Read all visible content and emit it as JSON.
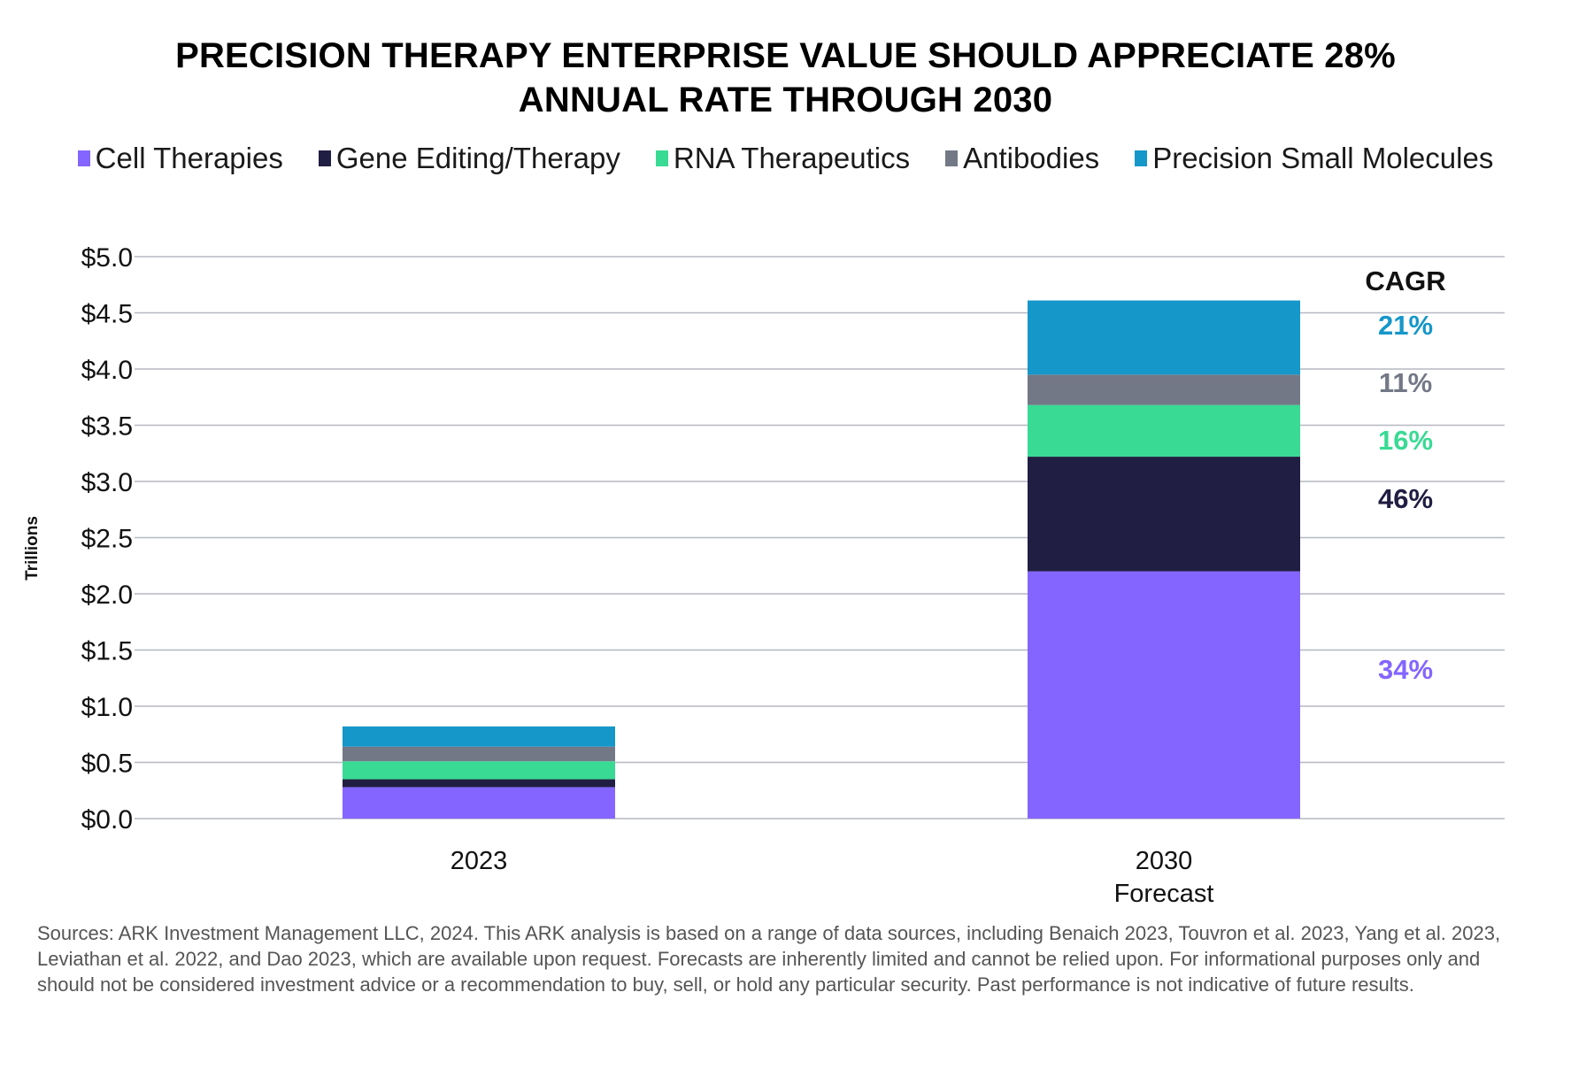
{
  "title_lines": [
    "PRECISION THERAPY ENTERPRISE VALUE SHOULD APPRECIATE 28%",
    "ANNUAL RATE THROUGH 2030"
  ],
  "sources": "Sources: ARK Investment Management LLC, 2024. This ARK analysis is based on a range of data sources, including Benaich 2023, Touvron et al. 2023, Yang et al. 2023, Leviathan et al. 2022, and Dao 2023, which are available upon request. Forecasts are inherently limited and cannot be relied upon. For informational purposes only and should not be considered investment advice or a recommendation to buy, sell, or hold any particular security. Past performance is not indicative of future results.",
  "chart_data": {
    "type": "bar",
    "stacked": true,
    "ylabel": "Trillions",
    "ylim": [
      0,
      5
    ],
    "yticks": [
      "$0.0",
      "$0.5",
      "$1.0",
      "$1.5",
      "$2.0",
      "$2.5",
      "$3.0",
      "$3.5",
      "$4.0",
      "$4.5",
      "$5.0"
    ],
    "grid": true,
    "legend_placement": "top",
    "categories": [
      {
        "lines": [
          "2023"
        ]
      },
      {
        "lines": [
          "2030",
          "Forecast"
        ]
      }
    ],
    "series": [
      {
        "name": "Cell Therapies",
        "color": "#8465ff",
        "values": [
          0.28,
          2.2
        ],
        "cagr": "34%"
      },
      {
        "name": "Gene Editing/Therapy",
        "color": "#201e42",
        "values": [
          0.07,
          1.02
        ],
        "cagr": "46%"
      },
      {
        "name": "RNA Therapeutics",
        "color": "#39da94",
        "values": [
          0.16,
          0.46
        ],
        "cagr": "16%"
      },
      {
        "name": "Antibodies",
        "color": "#737887",
        "values": [
          0.13,
          0.27
        ],
        "cagr": "11%"
      },
      {
        "name": "Precision Small Molecules",
        "color": "#1597c9",
        "values": [
          0.18,
          0.66
        ],
        "cagr": "21%"
      }
    ],
    "cagr_header": "CAGR"
  }
}
